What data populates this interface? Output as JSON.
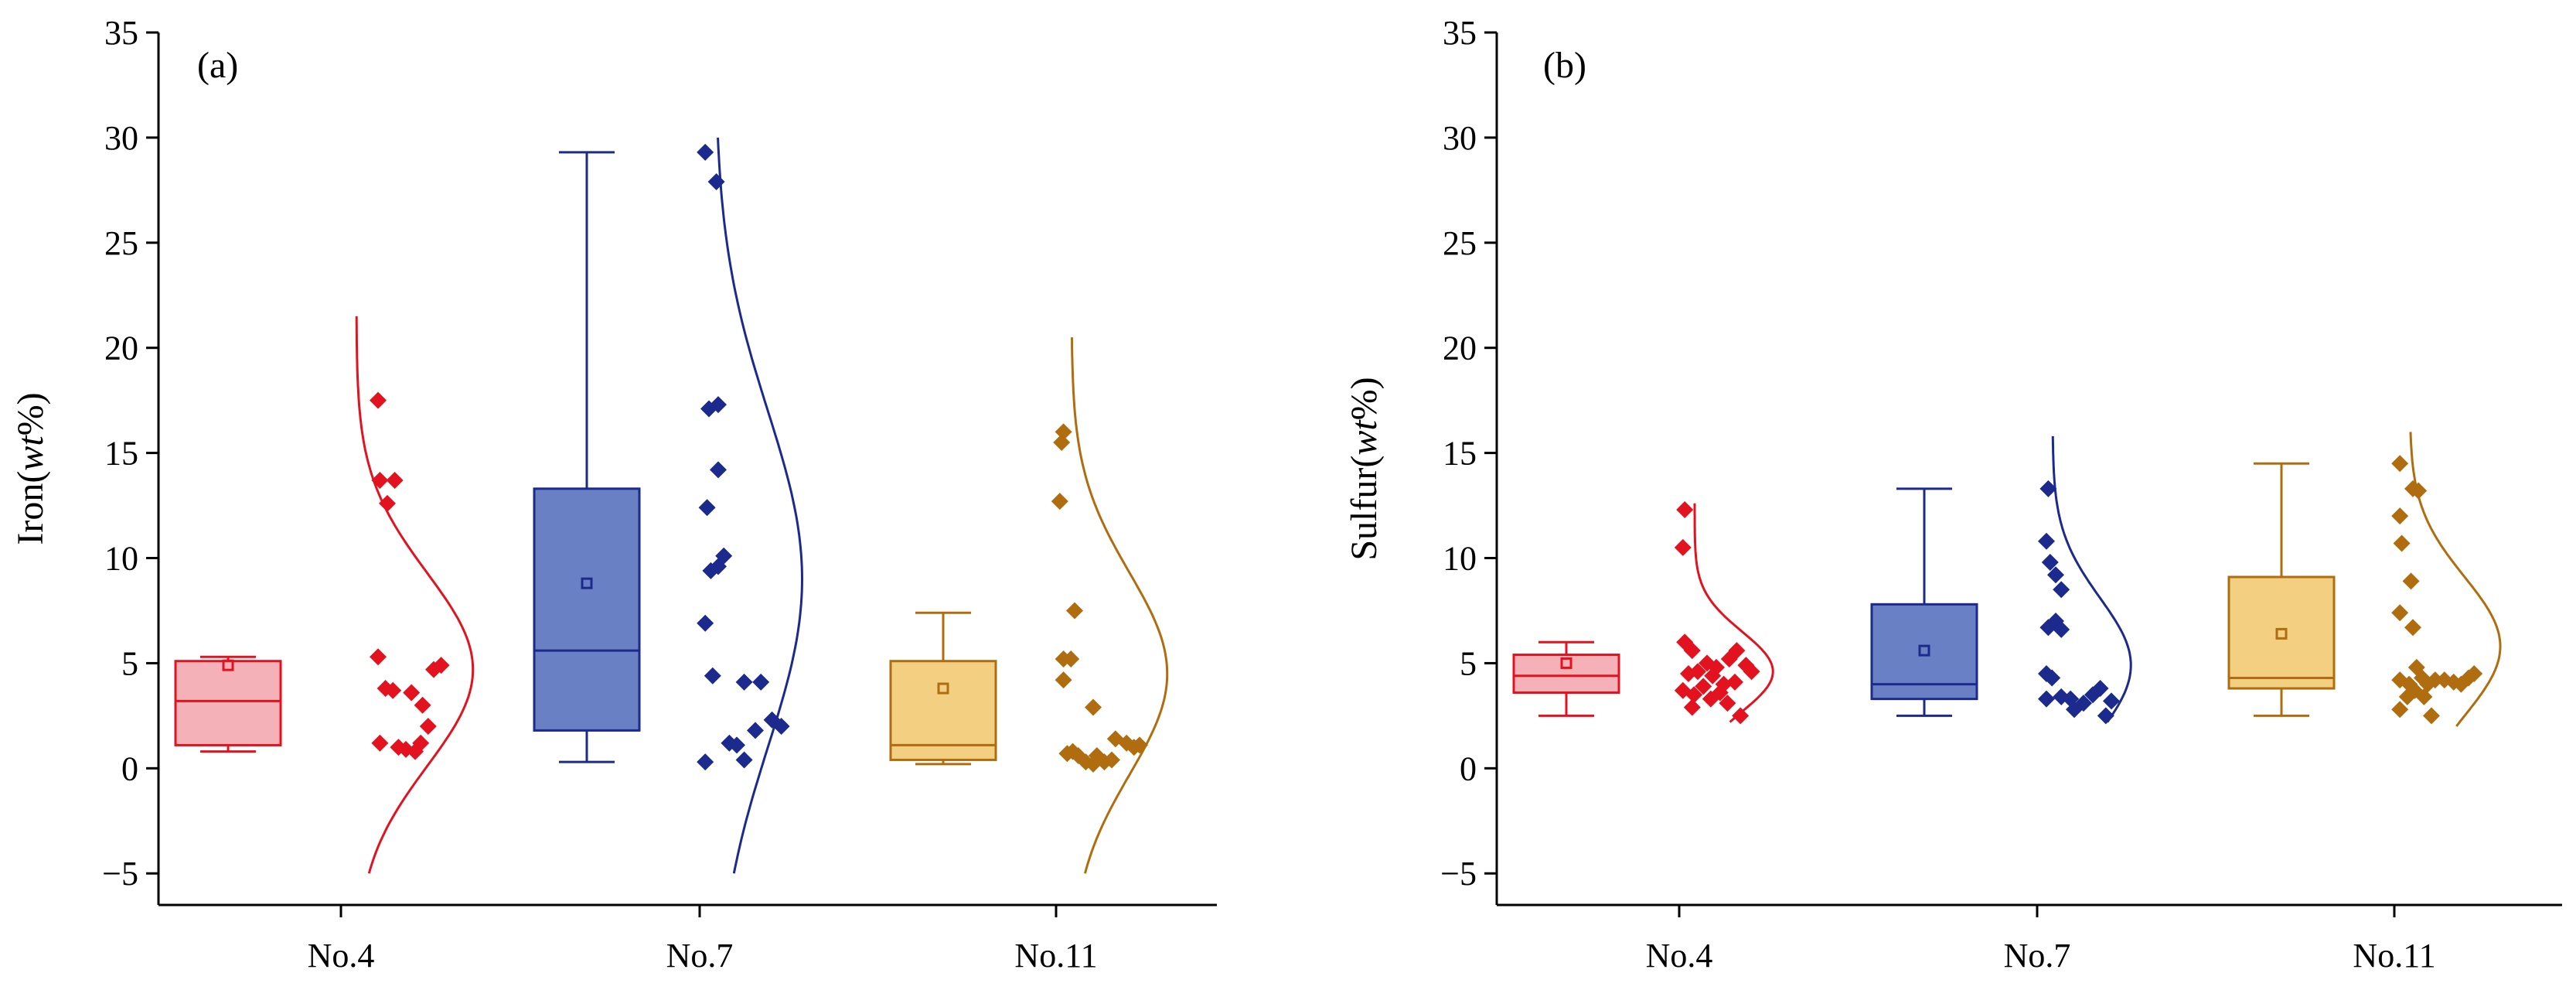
{
  "colors": {
    "no4": "#e3121f",
    "no7": "#1b2a8c",
    "no11": "#b06d0f",
    "no4_fill": "#f4b2b8",
    "no7_fill": "#6a80c4",
    "no11_fill": "#f3cf82"
  },
  "chart_data": [
    {
      "type": "box",
      "panel_label": "(a)",
      "ylabel_main": "Iron(",
      "ylabel_italic": "wt",
      "ylabel_tail": "%)",
      "ylim": [
        -6.5,
        35
      ],
      "yticks": [
        -5,
        0,
        5,
        10,
        15,
        20,
        25,
        30,
        35
      ],
      "categories": [
        "No.4",
        "No.7",
        "No.11"
      ],
      "groups": [
        {
          "category": "No.4",
          "color_key": "no4",
          "whisker_low": 0.8,
          "q1": 1.1,
          "median": 3.2,
          "q3": 5.1,
          "whisker_high": 5.3,
          "mean": 4.9,
          "points": [
            [
              0.2,
              17.5
            ],
            [
              0.21,
              13.7
            ],
            [
              0.29,
              13.7
            ],
            [
              0.25,
              12.6
            ],
            [
              0.2,
              5.3
            ],
            [
              0.24,
              3.8
            ],
            [
              0.28,
              3.7
            ],
            [
              0.38,
              3.6
            ],
            [
              0.21,
              1.2
            ],
            [
              0.31,
              1.0
            ],
            [
              0.35,
              0.9
            ],
            [
              0.43,
              1.2
            ],
            [
              0.47,
              2.0
            ],
            [
              0.5,
              4.7
            ],
            [
              0.54,
              4.9
            ],
            [
              0.44,
              3.0
            ],
            [
              0.4,
              0.8
            ]
          ],
          "curve": {
            "mu": 4.7,
            "sigma": 4.6,
            "peak": 0.67,
            "range": [
              -5,
              21.5
            ]
          }
        },
        {
          "category": "No.7",
          "color_key": "no7",
          "whisker_low": 0.3,
          "q1": 1.8,
          "median": 5.6,
          "q3": 13.3,
          "whisker_high": 29.3,
          "mean": 8.8,
          "points": [
            [
              0.03,
              29.3
            ],
            [
              0.09,
              27.9
            ],
            [
              0.05,
              17.1
            ],
            [
              0.1,
              17.3
            ],
            [
              0.04,
              12.4
            ],
            [
              0.1,
              14.2
            ],
            [
              0.13,
              10.1
            ],
            [
              0.1,
              9.6
            ],
            [
              0.06,
              9.4
            ],
            [
              0.03,
              6.9
            ],
            [
              0.07,
              4.4
            ],
            [
              0.24,
              4.1
            ],
            [
              0.33,
              4.1
            ],
            [
              0.16,
              1.2
            ],
            [
              0.2,
              1.1
            ],
            [
              0.3,
              1.8
            ],
            [
              0.39,
              2.3
            ],
            [
              0.44,
              2.0
            ],
            [
              0.03,
              0.3
            ],
            [
              0.24,
              0.4
            ]
          ],
          "curve": {
            "mu": 9.0,
            "sigma": 8.0,
            "peak": 0.5,
            "range": [
              -5,
              30
            ]
          }
        },
        {
          "category": "No.11",
          "color_key": "no11",
          "whisker_low": 0.2,
          "q1": 0.4,
          "median": 1.1,
          "q3": 5.1,
          "whisker_high": 7.4,
          "mean": 3.8,
          "points": [
            [
              0.04,
              16.0
            ],
            [
              0.03,
              15.5
            ],
            [
              0.02,
              12.7
            ],
            [
              0.1,
              7.5
            ],
            [
              0.04,
              5.2
            ],
            [
              0.08,
              5.2
            ],
            [
              0.04,
              4.2
            ],
            [
              0.2,
              2.9
            ],
            [
              0.06,
              0.7
            ],
            [
              0.12,
              0.6
            ],
            [
              0.16,
              0.3
            ],
            [
              0.22,
              0.6
            ],
            [
              0.26,
              0.3
            ],
            [
              0.3,
              0.4
            ],
            [
              0.32,
              1.4
            ],
            [
              0.38,
              1.2
            ],
            [
              0.42,
              1.0
            ],
            [
              0.45,
              1.1
            ],
            [
              0.2,
              0.2
            ],
            [
              0.09,
              0.8
            ]
          ],
          "curve": {
            "mu": 4.5,
            "sigma": 4.8,
            "peak": 0.55,
            "range": [
              -5,
              20.5
            ]
          }
        }
      ]
    },
    {
      "type": "box",
      "panel_label": "(b)",
      "ylabel_main": "Sulfur(",
      "ylabel_italic": "wt",
      "ylabel_tail": "%)",
      "ylim": [
        -6.5,
        35
      ],
      "yticks": [
        -5,
        0,
        5,
        10,
        15,
        20,
        25,
        30,
        35
      ],
      "categories": [
        "No.4",
        "No.7",
        "No.11"
      ],
      "groups": [
        {
          "category": "No.4",
          "color_key": "no4",
          "whisker_low": 2.5,
          "q1": 3.6,
          "median": 4.4,
          "q3": 5.4,
          "whisker_high": 6.0,
          "mean": 5.0,
          "points": [
            [
              0.03,
              12.3
            ],
            [
              0.02,
              10.5
            ],
            [
              0.03,
              6.0
            ],
            [
              0.07,
              5.6
            ],
            [
              0.15,
              5.0
            ],
            [
              0.05,
              4.5
            ],
            [
              0.1,
              4.6
            ],
            [
              0.18,
              4.4
            ],
            [
              0.2,
              4.8
            ],
            [
              0.27,
              5.2
            ],
            [
              0.31,
              5.6
            ],
            [
              0.24,
              4.0
            ],
            [
              0.36,
              4.9
            ],
            [
              0.39,
              4.6
            ],
            [
              0.02,
              3.7
            ],
            [
              0.08,
              3.5
            ],
            [
              0.13,
              3.9
            ],
            [
              0.17,
              3.3
            ],
            [
              0.22,
              3.6
            ],
            [
              0.26,
              3.1
            ],
            [
              0.3,
              4.1
            ],
            [
              0.07,
              2.9
            ],
            [
              0.33,
              2.5
            ]
          ],
          "curve": {
            "mu": 4.6,
            "sigma": 1.9,
            "peak": 0.45,
            "range": [
              2.2,
              12.6
            ]
          }
        },
        {
          "category": "No.7",
          "color_key": "no7",
          "whisker_low": 2.5,
          "q1": 3.3,
          "median": 4.0,
          "q3": 7.8,
          "whisker_high": 13.3,
          "mean": 5.6,
          "points": [
            [
              0.06,
              13.3
            ],
            [
              0.05,
              10.8
            ],
            [
              0.07,
              9.8
            ],
            [
              0.1,
              9.2
            ],
            [
              0.13,
              8.5
            ],
            [
              0.1,
              7.0
            ],
            [
              0.06,
              6.7
            ],
            [
              0.13,
              6.6
            ],
            [
              0.05,
              4.5
            ],
            [
              0.08,
              4.3
            ],
            [
              0.13,
              3.4
            ],
            [
              0.05,
              3.3
            ],
            [
              0.18,
              3.3
            ],
            [
              0.2,
              2.8
            ],
            [
              0.25,
              3.1
            ],
            [
              0.3,
              3.5
            ],
            [
              0.34,
              3.8
            ],
            [
              0.4,
              3.2
            ],
            [
              0.37,
              2.5
            ]
          ],
          "curve": {
            "mu": 4.9,
            "sigma": 3.2,
            "peak": 0.45,
            "range": [
              2.2,
              15.8
            ]
          }
        },
        {
          "category": "No.11",
          "color_key": "no11",
          "whisker_low": 2.5,
          "q1": 3.8,
          "median": 4.3,
          "q3": 9.1,
          "whisker_high": 14.5,
          "mean": 6.4,
          "points": [
            [
              0.03,
              14.5
            ],
            [
              0.1,
              13.3
            ],
            [
              0.13,
              13.2
            ],
            [
              0.03,
              12.0
            ],
            [
              0.04,
              10.7
            ],
            [
              0.09,
              8.9
            ],
            [
              0.03,
              7.4
            ],
            [
              0.1,
              6.7
            ],
            [
              0.03,
              4.2
            ],
            [
              0.08,
              4.0
            ],
            [
              0.12,
              4.8
            ],
            [
              0.15,
              4.3
            ],
            [
              0.18,
              4.0
            ],
            [
              0.22,
              4.2
            ],
            [
              0.27,
              4.2
            ],
            [
              0.32,
              4.1
            ],
            [
              0.36,
              4.0
            ],
            [
              0.4,
              4.3
            ],
            [
              0.43,
              4.5
            ],
            [
              0.07,
              3.4
            ],
            [
              0.11,
              3.7
            ],
            [
              0.16,
              3.4
            ],
            [
              0.03,
              2.8
            ],
            [
              0.2,
              2.5
            ]
          ],
          "curve": {
            "mu": 5.8,
            "sigma": 3.3,
            "peak": 0.52,
            "range": [
              2.0,
              16.0
            ]
          }
        }
      ]
    }
  ]
}
